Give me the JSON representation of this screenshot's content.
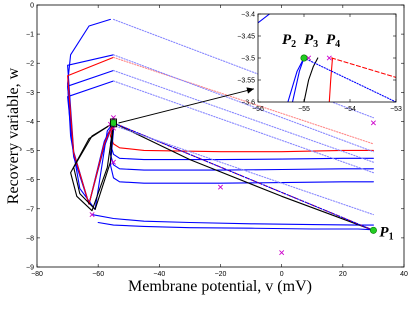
{
  "chart_data": [
    {
      "type": "line",
      "title": "",
      "xlabel": "Membrane potential, v (mV)",
      "ylabel": "Recovery variable, w",
      "xlim": [
        -80,
        40
      ],
      "ylim": [
        -9,
        1
      ],
      "xticks": [
        "−80",
        "−60",
        "−40",
        "−20",
        "0",
        "20",
        "40"
      ],
      "yticks": [
        "−9",
        "−8",
        "−7",
        "−6",
        "−5",
        "−4",
        "−3",
        "−2",
        "−1",
        "0"
      ],
      "grid": false,
      "point_labels": [
        {
          "name": "P",
          "sub": "1",
          "x": 30,
          "y": -7.6
        },
        {
          "name": "P",
          "sub": "2",
          "x": -55.05,
          "y": -3.5
        },
        {
          "name": "P",
          "sub": "3",
          "x": -54.75,
          "y": -3.5
        },
        {
          "name": "P",
          "sub": "4",
          "x": -54.45,
          "y": -3.5
        }
      ],
      "series": [
        {
          "color": "#0000ff",
          "style": "solid",
          "x": [
            -56,
            -63,
            -69,
            -70,
            -69,
            -66,
            -61,
            -57,
            -55
          ],
          "y": [
            0.45,
            0.2,
            -0.9,
            -2.0,
            -4.0,
            -6.0,
            -6.8,
            -3.8,
            -3.5
          ]
        },
        {
          "color": "#0000ff",
          "style": "solid",
          "x": [
            -55,
            -70,
            -68,
            -63,
            -58,
            -55
          ],
          "y": [
            -0.9,
            -1.3,
            -4.6,
            -6.6,
            -4.2,
            -3.5
          ]
        },
        {
          "color": "#0000ff",
          "style": "solid",
          "x": [
            -55,
            -70,
            -68,
            -63,
            -58,
            -55
          ],
          "y": [
            -1.5,
            -2.1,
            -4.7,
            -6.6,
            -4.3,
            -3.5
          ]
        },
        {
          "color": "#0000ff",
          "style": "solid",
          "x": [
            -55,
            -70,
            -68,
            -63,
            -58,
            -55
          ],
          "y": [
            -1.9,
            -2.5,
            -4.8,
            -6.6,
            -4.4,
            -3.5
          ]
        },
        {
          "color": "#ff0000",
          "style": "solid",
          "x": [
            -55,
            -70,
            -68,
            -63,
            -58,
            -55
          ],
          "y": [
            -1.0,
            -1.7,
            -4.65,
            -6.6,
            -4.3,
            -3.5
          ]
        },
        {
          "color": "#ff0000",
          "style": "solid",
          "x": [
            -55,
            -56,
            -55,
            -53,
            -45,
            -20,
            0,
            20,
            30
          ],
          "y": [
            -3.5,
            -4.0,
            -4.3,
            -4.45,
            -4.55,
            -4.6,
            -4.6,
            -4.55,
            -4.55
          ]
        },
        {
          "color": "#0000ff",
          "style": "solid",
          "x": [
            -55,
            -56,
            -55,
            -53,
            -45,
            -20,
            0,
            20,
            30
          ],
          "y": [
            -3.6,
            -4.3,
            -4.7,
            -4.85,
            -4.9,
            -4.9,
            -4.88,
            -4.85,
            -4.85
          ]
        },
        {
          "color": "#0000ff",
          "style": "solid",
          "x": [
            -55,
            -56,
            -55,
            -53,
            -45,
            -20,
            0,
            20,
            30
          ],
          "y": [
            -3.7,
            -4.7,
            -5.1,
            -5.25,
            -5.3,
            -5.3,
            -5.28,
            -5.25,
            -5.25
          ]
        },
        {
          "color": "#0000ff",
          "style": "solid",
          "x": [
            -55,
            -56,
            -55,
            -53,
            -45,
            -20,
            0,
            20,
            30
          ],
          "y": [
            -3.8,
            -5.1,
            -5.6,
            -5.75,
            -5.8,
            -5.8,
            -5.78,
            -5.75,
            -5.75
          ]
        },
        {
          "color": "#0000ff",
          "style": "solid",
          "x": [
            -62,
            -55,
            -45,
            -30,
            -10,
            10,
            25,
            30
          ],
          "y": [
            -7.0,
            -7.15,
            -7.25,
            -7.3,
            -7.35,
            -7.38,
            -7.4,
            -7.4
          ]
        },
        {
          "color": "#0000ff",
          "style": "solid",
          "x": [
            -60,
            -55,
            -45,
            -30,
            -10,
            10,
            25,
            30
          ],
          "y": [
            -7.3,
            -7.4,
            -7.45,
            -7.5,
            -7.52,
            -7.55,
            -7.55,
            -7.58
          ]
        },
        {
          "color": "#000000",
          "style": "solid",
          "x": [
            -55,
            -62,
            -68,
            -66,
            -61,
            -56,
            -55
          ],
          "y": [
            -3.5,
            -4.0,
            -5.2,
            -6.2,
            -6.8,
            -5.0,
            -3.5
          ]
        },
        {
          "color": "#000000",
          "style": "solid",
          "x": [
            -55,
            -63,
            -69,
            -67,
            -62,
            -57,
            -55
          ],
          "y": [
            -3.5,
            -4.1,
            -5.4,
            -6.3,
            -6.85,
            -5.2,
            -3.55
          ]
        },
        {
          "color": "#000000",
          "style": "solid",
          "x": [
            -55,
            -30,
            0,
            30
          ],
          "y": [
            -3.5,
            -4.9,
            -6.3,
            -7.6
          ]
        },
        {
          "color": "#ff0000",
          "style": "dashed",
          "x": [
            -55,
            30
          ],
          "y": [
            -3.5,
            -7.6
          ]
        },
        {
          "color": "#0000ff",
          "style": "dotted",
          "x": [
            -55,
            30
          ],
          "y": [
            -3.5,
            -7.6
          ]
        },
        {
          "color": "#8888ff",
          "style": "dotted",
          "x": [
            -55,
            30
          ],
          "y": [
            0.45,
            -3.3
          ]
        },
        {
          "color": "#ff8888",
          "style": "dotted",
          "x": [
            -55,
            30
          ],
          "y": [
            -1.0,
            -4.3
          ]
        },
        {
          "color": "#8888ff",
          "style": "dotted",
          "x": [
            -55,
            30
          ],
          "y": [
            -0.9,
            -4.6
          ]
        },
        {
          "color": "#8888ff",
          "style": "dotted",
          "x": [
            -55,
            30
          ],
          "y": [
            -1.5,
            -5.0
          ]
        },
        {
          "color": "#8888ff",
          "style": "dotted",
          "x": [
            -55,
            30
          ],
          "y": [
            -1.9,
            -5.4
          ]
        },
        {
          "color": "#8888ff",
          "style": "dotted",
          "x": [
            -55,
            30
          ],
          "y": [
            -3.6,
            -7.0
          ]
        }
      ],
      "markers": [
        {
          "x": 30,
          "y": -3.5
        },
        {
          "x": -20,
          "y": -5.95
        },
        {
          "x": -62,
          "y": -7.0
        },
        {
          "x": 0,
          "y": -8.45
        },
        {
          "x": -55,
          "y": -3.3
        },
        {
          "x": -55,
          "y": -3.7
        },
        {
          "x": -55,
          "y": -5.0
        },
        {
          "x": -56,
          "y": -3.55
        }
      ],
      "marker_color": "#cc00cc",
      "green_points": [
        {
          "x": 30,
          "y": -7.6
        },
        {
          "x": -55,
          "y": -3.5
        }
      ],
      "zoom_box": {
        "x": [
          -56,
          -54
        ],
        "y": [
          -3.65,
          -3.35
        ]
      }
    },
    {
      "type": "line",
      "title": "",
      "xlabel": "",
      "ylabel": "",
      "xlim": [
        -56,
        -53
      ],
      "ylim": [
        -3.6,
        -3.4
      ],
      "xticks": [
        "−56",
        "−55",
        "−54",
        "−53"
      ],
      "yticks": [
        "−3.6",
        "−3.55",
        "−3.5",
        "−3.45",
        "−3.4"
      ],
      "series": [
        {
          "color": "#0000ff",
          "style": "solid",
          "x": [
            -56,
            -55.75
          ],
          "y": [
            -3.42,
            -3.4
          ]
        },
        {
          "color": "#0000ff",
          "style": "solid",
          "x": [
            -55.25,
            -55.1,
            -55.0
          ],
          "y": [
            -3.6,
            -3.53,
            -3.5
          ]
        },
        {
          "color": "#0000ff",
          "style": "solid",
          "x": [
            -55.35,
            -55.15,
            -55.0
          ],
          "y": [
            -3.6,
            -3.53,
            -3.5
          ]
        },
        {
          "color": "#000000",
          "style": "solid",
          "x": [
            -55.0,
            -54.9,
            -54.8,
            -54.7
          ],
          "y": [
            -3.6,
            -3.55,
            -3.52,
            -3.5
          ]
        },
        {
          "color": "#ff0000",
          "style": "solid",
          "x": [
            -54.45,
            -54.42,
            -54.38
          ],
          "y": [
            -3.6,
            -3.55,
            -3.5
          ]
        },
        {
          "color": "#ff0000",
          "style": "dashed",
          "x": [
            -54.4,
            -53.0
          ],
          "y": [
            -3.5,
            -3.544
          ]
        },
        {
          "color": "#0000ff",
          "style": "dotted",
          "x": [
            -55.0,
            -53.0
          ],
          "y": [
            -3.5,
            -3.6
          ]
        }
      ],
      "markers": [
        {
          "x": -54.9,
          "y": -3.5
        },
        {
          "x": -54.45,
          "y": -3.5
        }
      ],
      "marker_color": "#cc00cc",
      "green_points": [
        {
          "x": -55.0,
          "y": -3.5
        }
      ]
    }
  ]
}
